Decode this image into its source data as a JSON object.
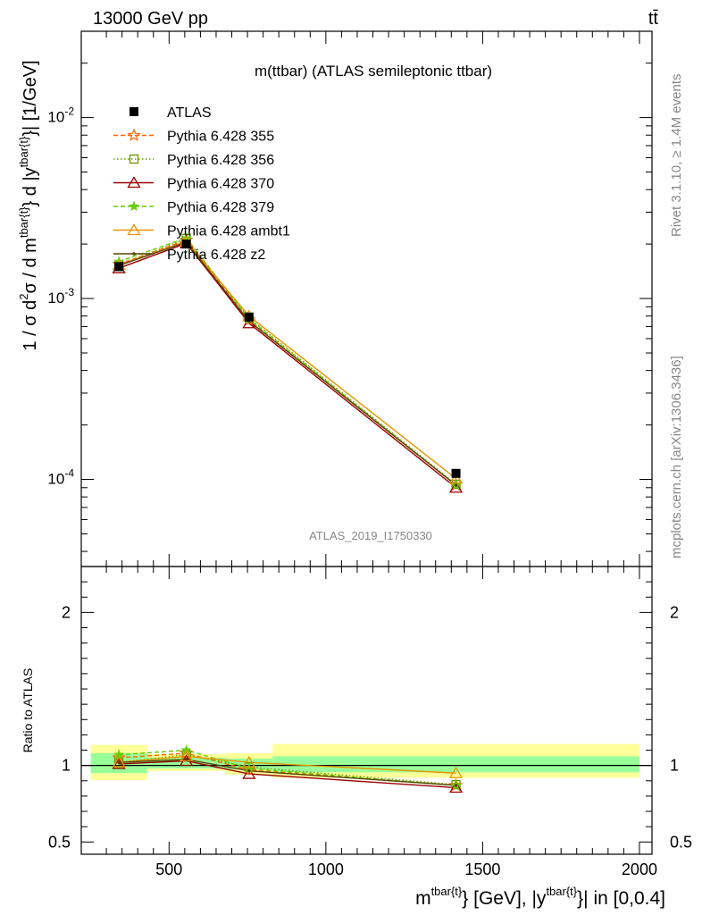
{
  "header": {
    "left": "13000 GeV pp",
    "right": "tt̄"
  },
  "side": {
    "rivet": "Rivet 3.1.10, ≥ 1.4M events",
    "mcplots": "mcplots.cern.ch [arXiv:1306.3436]"
  },
  "chart_data": [
    {
      "type": "line",
      "title": "m(ttbar) (ATLAS semileptonic ttbar)",
      "analysis_label": "ATLAS_2019_I1750330",
      "ylabel": "1 / σ d²σ / d m^{tbar{t}} d |y^{tbar{t}}| [1/GeV]",
      "xlabel": "m^{tbar{t}} [GeV], |y^{tbar{t}}| in [0,0.4]",
      "yscale": "log",
      "xlim": [
        220,
        2040
      ],
      "ylim": [
        3.3e-05,
        0.03
      ],
      "ytick_labels": [
        "10^{-4}",
        "10^{-3}",
        "10^{-2}"
      ],
      "legend_position": "top-left",
      "series": [
        {
          "name": "ATLAS",
          "marker": "square",
          "color": "#000000",
          "x": [
            340,
            555,
            755,
            1415
          ],
          "y": [
            0.0015,
            0.002,
            0.00079,
            0.000108
          ]
        },
        {
          "name": "Pythia 6.428 355",
          "marker": "star-open",
          "linestyle": "dashed",
          "color": "#ff6600",
          "x": [
            340,
            555,
            755,
            1415
          ],
          "y": [
            0.00155,
            0.0021,
            0.00076,
            9.3e-05
          ]
        },
        {
          "name": "Pythia 6.428 356",
          "marker": "square-open",
          "linestyle": "dotted",
          "color": "#669900",
          "x": [
            340,
            555,
            755,
            1415
          ],
          "y": [
            0.00152,
            0.00215,
            0.00078,
            9.4e-05
          ]
        },
        {
          "name": "Pythia 6.428 370",
          "marker": "triangle-open",
          "linestyle": "solid",
          "color": "#990000",
          "x": [
            340,
            555,
            755,
            1415
          ],
          "y": [
            0.00147,
            0.00202,
            0.00073,
            9e-05
          ]
        },
        {
          "name": "Pythia 6.428 379",
          "marker": "star",
          "linestyle": "dashed",
          "color": "#66cc00",
          "x": [
            340,
            555,
            755,
            1415
          ],
          "y": [
            0.0016,
            0.00216,
            0.00077,
            9.3e-05
          ]
        },
        {
          "name": "Pythia 6.428 ambt1",
          "marker": "triangle-open",
          "linestyle": "solid",
          "color": "#e69500",
          "x": [
            340,
            555,
            755,
            1415
          ],
          "y": [
            0.00153,
            0.00207,
            0.0008,
            0.000101
          ]
        },
        {
          "name": "Pythia 6.428 z2",
          "marker": "dot",
          "linestyle": "solid",
          "color": "#554400",
          "x": [
            340,
            555,
            755,
            1415
          ],
          "y": [
            0.00152,
            0.00205,
            0.00075,
            9.3e-05
          ]
        }
      ]
    },
    {
      "type": "line",
      "ylabel": "Ratio to ATLAS",
      "xlabel": "m^{tbar{t}} [GeV], |y^{tbar{t}}| in [0,0.4]",
      "xlim": [
        220,
        2040
      ],
      "ylim": [
        0.42,
        2.3
      ],
      "yticks": [
        0.5,
        1,
        2
      ],
      "ytick_labels": [
        "0.5",
        "1",
        "2"
      ],
      "xticks": [
        500,
        1000,
        1500,
        2000
      ],
      "xtick_labels": [
        "500",
        "1000",
        "1500",
        "2000"
      ],
      "bins": [
        [
          250,
          430
        ],
        [
          430,
          680
        ],
        [
          680,
          830
        ],
        [
          830,
          2000
        ]
      ],
      "band_inner": [
        [
          0.95,
          1.08
        ],
        [
          0.98,
          1.05
        ],
        [
          0.975,
          1.045
        ],
        [
          0.955,
          1.06
        ]
      ],
      "band_outer": [
        [
          0.905,
          1.135
        ],
        [
          0.965,
          1.075
        ],
        [
          0.94,
          1.08
        ],
        [
          0.92,
          1.14
        ]
      ],
      "series": [
        {
          "name": "Pythia 6.428 355",
          "x": [
            340,
            555,
            755,
            1415
          ],
          "y": [
            1.05,
            1.08,
            0.97,
            0.87
          ]
        },
        {
          "name": "Pythia 6.428 356",
          "x": [
            340,
            555,
            755,
            1415
          ],
          "y": [
            1.02,
            1.07,
            0.99,
            0.875
          ]
        },
        {
          "name": "Pythia 6.428 370",
          "x": [
            340,
            555,
            755,
            1415
          ],
          "y": [
            1.01,
            1.03,
            0.945,
            0.855
          ]
        },
        {
          "name": "Pythia 6.428 379",
          "x": [
            340,
            555,
            755,
            1415
          ],
          "y": [
            1.07,
            1.1,
            0.98,
            0.87
          ]
        },
        {
          "name": "Pythia 6.428 ambt1",
          "x": [
            340,
            555,
            755,
            1415
          ],
          "y": [
            1.02,
            1.06,
            1.02,
            0.95
          ]
        },
        {
          "name": "Pythia 6.428 z2",
          "x": [
            340,
            555,
            755,
            1415
          ],
          "y": [
            1.02,
            1.04,
            0.965,
            0.87
          ]
        }
      ]
    }
  ]
}
